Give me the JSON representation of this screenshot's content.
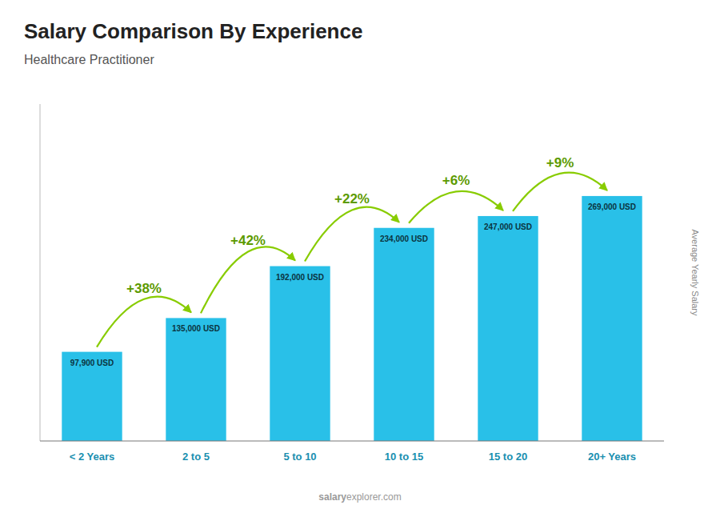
{
  "chart_data": {
    "type": "bar",
    "title": "Salary Comparison By Experience",
    "subtitle": "Healthcare Practitioner",
    "ylabel": "Average Yearly Salary",
    "categories": [
      "< 2 Years",
      "2 to 5",
      "5 to 10",
      "10 to 15",
      "15 to 20",
      "20+ Years"
    ],
    "values": [
      97900,
      135000,
      192000,
      234000,
      247000,
      269000
    ],
    "value_labels": [
      "97,900 USD",
      "135,000 USD",
      "192,000 USD",
      "234,000 USD",
      "247,000 USD",
      "269,000 USD"
    ],
    "data_labels": true,
    "annotations": [
      "+38%",
      "+42%",
      "+22%",
      "+6%",
      "+9%"
    ],
    "watermark": [
      "salary",
      "explorer.com"
    ],
    "color": "#29c0e8",
    "ylim": [
      0,
      370000
    ],
    "tick_labels": "x",
    "grid": false
  }
}
